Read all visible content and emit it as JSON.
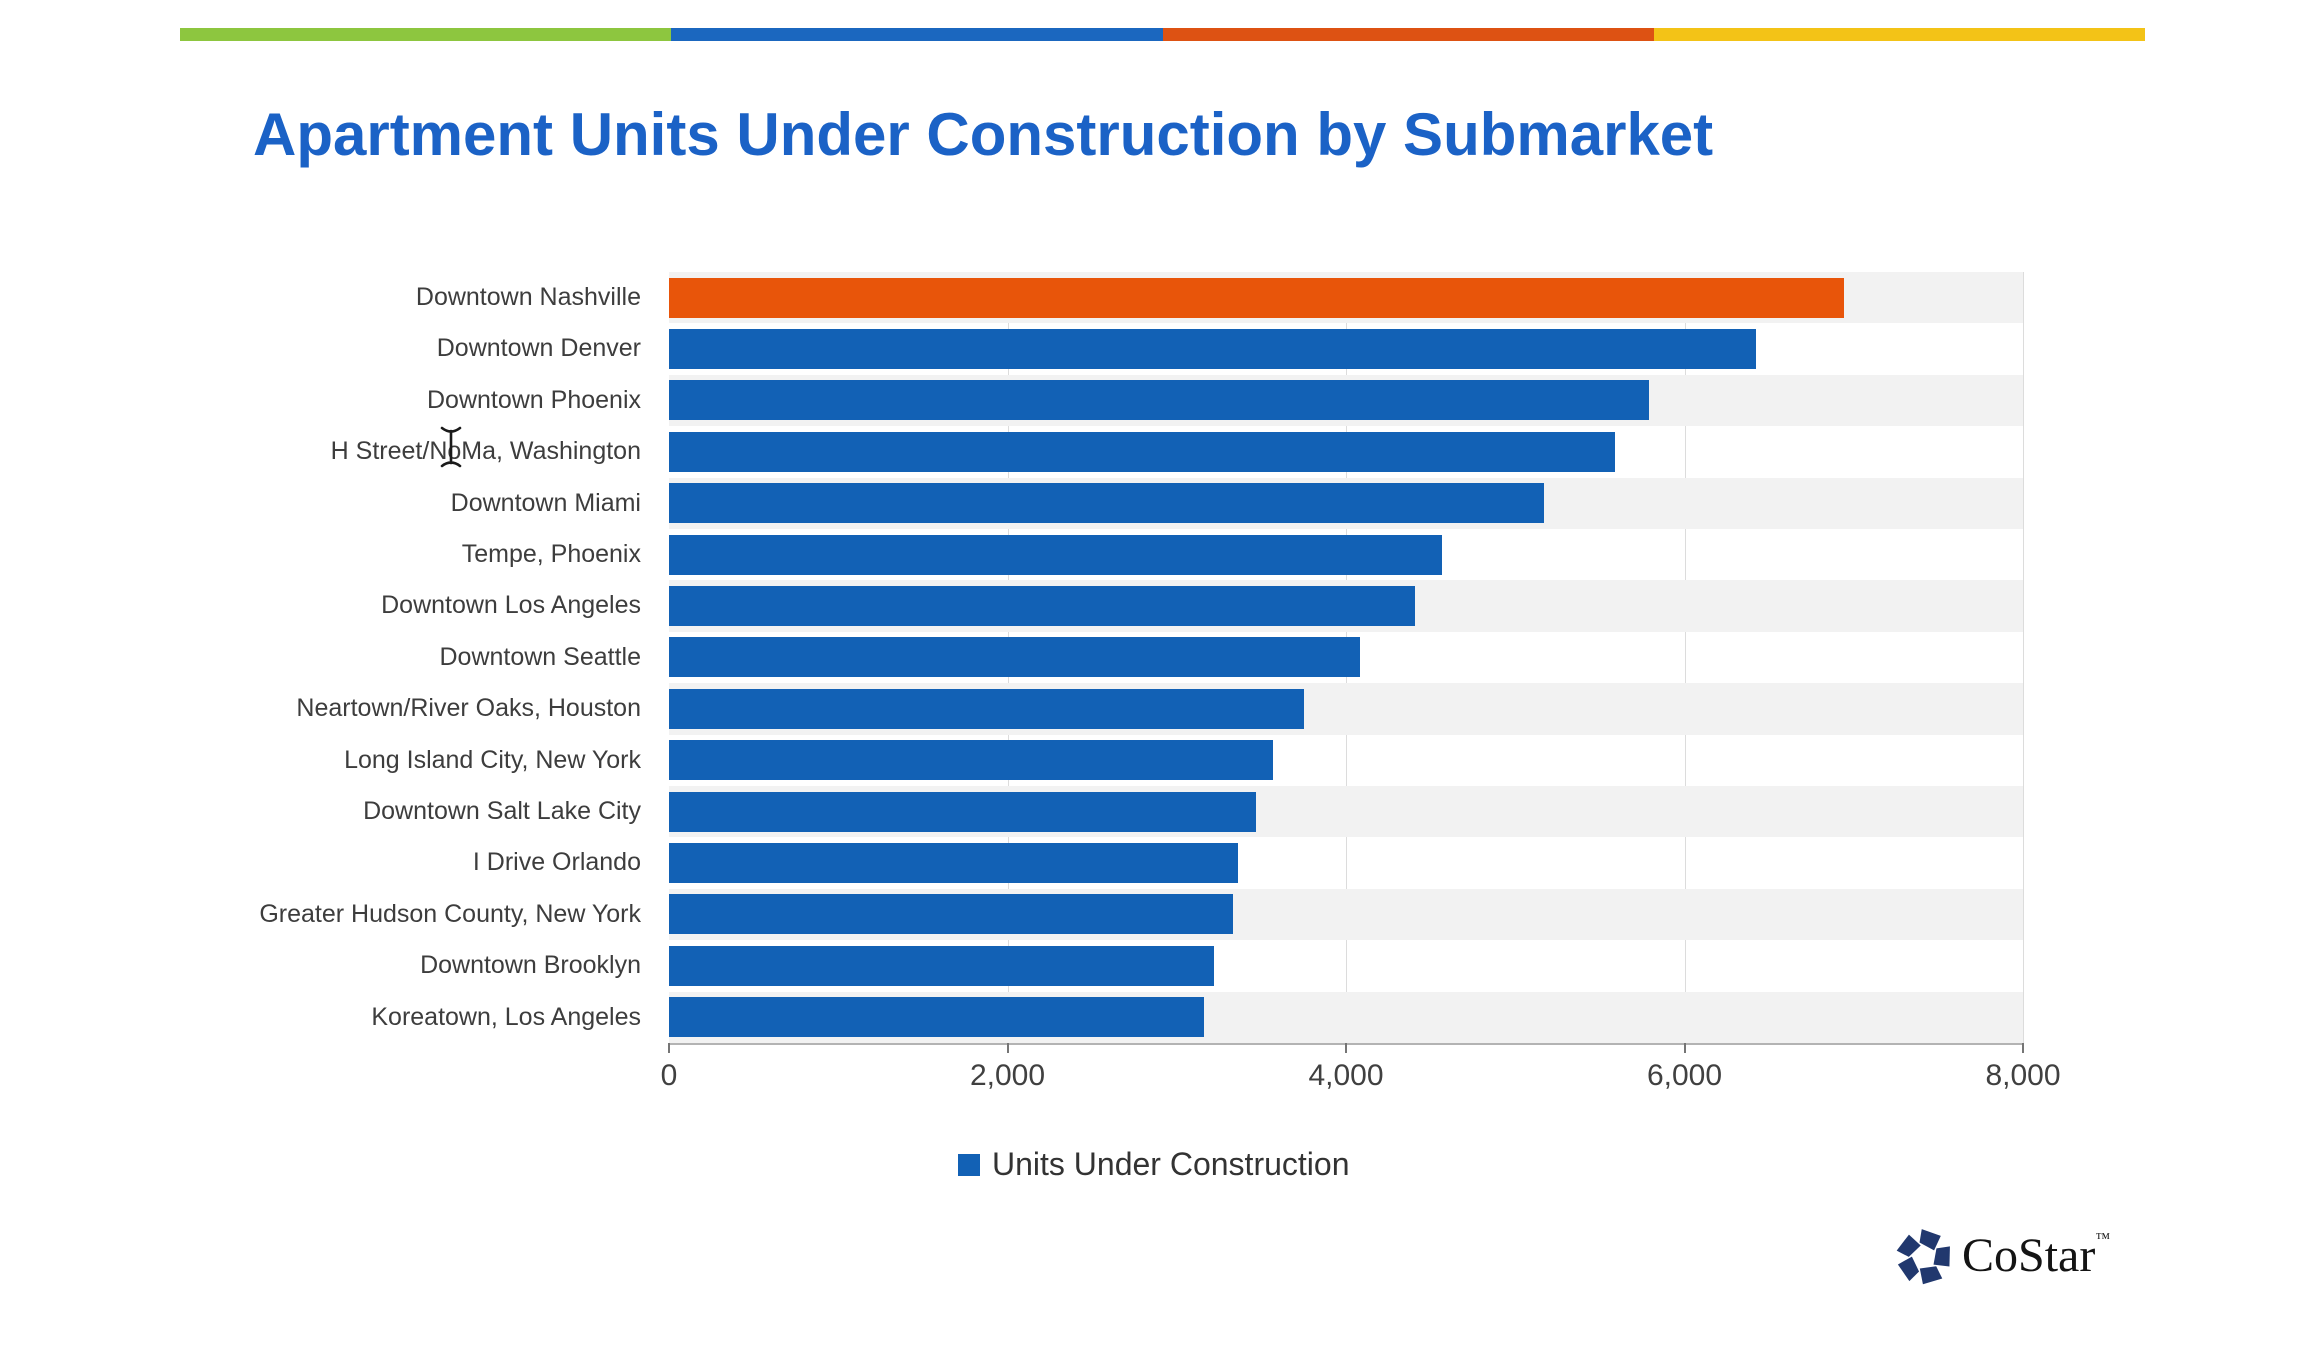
{
  "title": "Apartment Units Under Construction by Submarket",
  "top_stripe_colors": [
    "#8dc63f",
    "#1b67bf",
    "#dd5213",
    "#f3c317"
  ],
  "legend": {
    "label": "Units Under Construction",
    "swatch_color": "#1261b5"
  },
  "branding": {
    "logo_text": "CoStar",
    "trademark": "TM",
    "logo_icon_color": "#21386e"
  },
  "colors": {
    "title": "#1b62c6",
    "bar_blue": "#1261b5",
    "highlight_orange": "#e8550a",
    "row_band": "#f2f2f2",
    "gridline": "#dcdcdc",
    "axis_line": "#b3b3b3",
    "tick_text": "#404040",
    "category_text": "#3d3d3d"
  },
  "chart_data": {
    "type": "bar",
    "orientation": "horizontal",
    "title": "Apartment Units Under Construction by Submarket",
    "categories": [
      "Downtown Nashville",
      "Downtown Denver",
      "Downtown Phoenix",
      "H Street/NoMa, Washington",
      "Downtown Miami",
      "Tempe, Phoenix",
      "Downtown Los Angeles",
      "Downtown Seattle",
      "Neartown/River Oaks, Houston",
      "Long Island City, New York",
      "Downtown Salt Lake City",
      "I Drive Orlando",
      "Greater Hudson County, New York",
      "Downtown Brooklyn",
      "Koreatown, Los Angeles"
    ],
    "series": [
      {
        "name": "Units Under Construction",
        "values": [
          6940,
          6420,
          5790,
          5590,
          5170,
          4570,
          4410,
          4080,
          3750,
          3570,
          3470,
          3360,
          3330,
          3220,
          3160
        ]
      }
    ],
    "highlight_category": "Downtown Nashville",
    "highlight_color": "#e8550a",
    "bar_color": "#1261b5",
    "xlim": [
      0,
      8000
    ],
    "x_ticks": [
      0,
      2000,
      4000,
      6000,
      8000
    ],
    "x_tick_labels": [
      "0",
      "2,000",
      "4,000",
      "6,000",
      "8,000"
    ],
    "row_banding": "odd rows shaded",
    "gridlines": "vertical at major ticks",
    "legend_position": "bottom-center"
  }
}
